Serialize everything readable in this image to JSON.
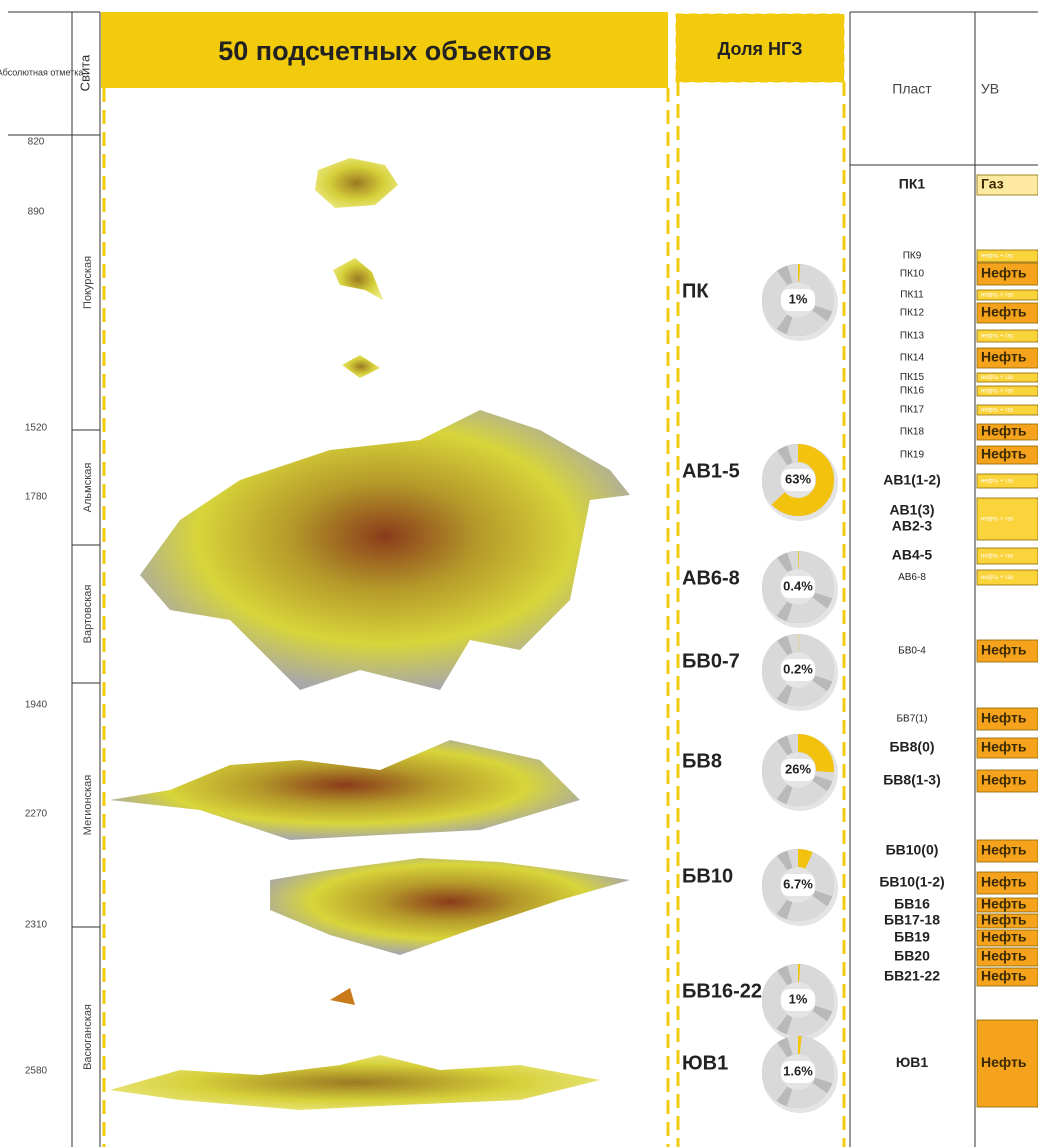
{
  "header": {
    "depth_label": "Абсолютная отметка",
    "suite_label": "Свита",
    "title": "50 подсчетных объектов",
    "share_label": "Доля НГЗ",
    "layer_label": "Пласт",
    "fluid_label": "УВ"
  },
  "depths": [
    820,
    890,
    1520,
    1780,
    1940,
    2270,
    2310,
    2580
  ],
  "suites": [
    "Покурская",
    "Альмская",
    "Вартовская",
    "Мегионская",
    "Васюганская"
  ],
  "shares": {
    "labels": [
      "ПК",
      "АВ1-5",
      "АВ6-8",
      "БВ0-7",
      "БВ8",
      "БВ10",
      "БВ16-22",
      "ЮВ1"
    ],
    "values": [
      1,
      63,
      0.4,
      0.2,
      26,
      6.7,
      1,
      1.6
    ],
    "value_labels": [
      "1%",
      "63%",
      "0.4%",
      "0.2%",
      "26%",
      "6.7%",
      "1%",
      "1.6%"
    ]
  },
  "layers": [
    {
      "names": [
        "ПК1"
      ],
      "fluid": "Газ"
    },
    {
      "names": [
        "ПК9"
      ],
      "fluid": "нефть + газ"
    },
    {
      "names": [
        "ПК10"
      ],
      "fluid": "Нефть"
    },
    {
      "names": [
        "ПК11"
      ],
      "fluid": "нефть + газ"
    },
    {
      "names": [
        "ПК12"
      ],
      "fluid": "Нефть"
    },
    {
      "names": [
        "ПК13"
      ],
      "fluid": "нефть + газ"
    },
    {
      "names": [
        "ПК14"
      ],
      "fluid": "Нефть"
    },
    {
      "names": [
        "ПК15"
      ],
      "fluid": "нефть + газ"
    },
    {
      "names": [
        "ПК16"
      ],
      "fluid": "нефть + газ"
    },
    {
      "names": [
        "ПК17"
      ],
      "fluid": "нефть + газ"
    },
    {
      "names": [
        "ПК18"
      ],
      "fluid": "Нефть"
    },
    {
      "names": [
        "ПК19"
      ],
      "fluid": "Нефть"
    },
    {
      "names": [
        "АВ1(1-2)"
      ],
      "fluid": "нефть + газ"
    },
    {
      "names": [
        "АВ1(3)",
        "АВ2-3"
      ],
      "fluid": "нефть + газ"
    },
    {
      "names": [
        "АВ4-5"
      ],
      "fluid": "нефть + газ"
    },
    {
      "names": [
        "АВ6-8"
      ],
      "fluid": "нефть + газ"
    },
    {
      "names": [
        "БВ0-4"
      ],
      "fluid": "Нефть"
    },
    {
      "names": [
        "БВ7(1)"
      ],
      "fluid": "Нефть"
    },
    {
      "names": [
        "БВ8(0)"
      ],
      "fluid": "Нефть"
    },
    {
      "names": [
        "БВ8(1-3)"
      ],
      "fluid": "Нефть"
    },
    {
      "names": [
        "БВ10(0)"
      ],
      "fluid": "Нефть"
    },
    {
      "names": [
        "БВ10(1-2)"
      ],
      "fluid": "Нефть"
    },
    {
      "names": [
        "БВ16"
      ],
      "fluid": "Нефть"
    },
    {
      "names": [
        "БВ17-18"
      ],
      "fluid": "Нефть"
    },
    {
      "names": [
        "БВ19"
      ],
      "fluid": "Нефть"
    },
    {
      "names": [
        "БВ20"
      ],
      "fluid": "Нефть"
    },
    {
      "names": [
        "БВ21-22"
      ],
      "fluid": "Нефть"
    },
    {
      "names": [
        "ЮВ1"
      ],
      "fluid": "Нефть"
    }
  ]
}
